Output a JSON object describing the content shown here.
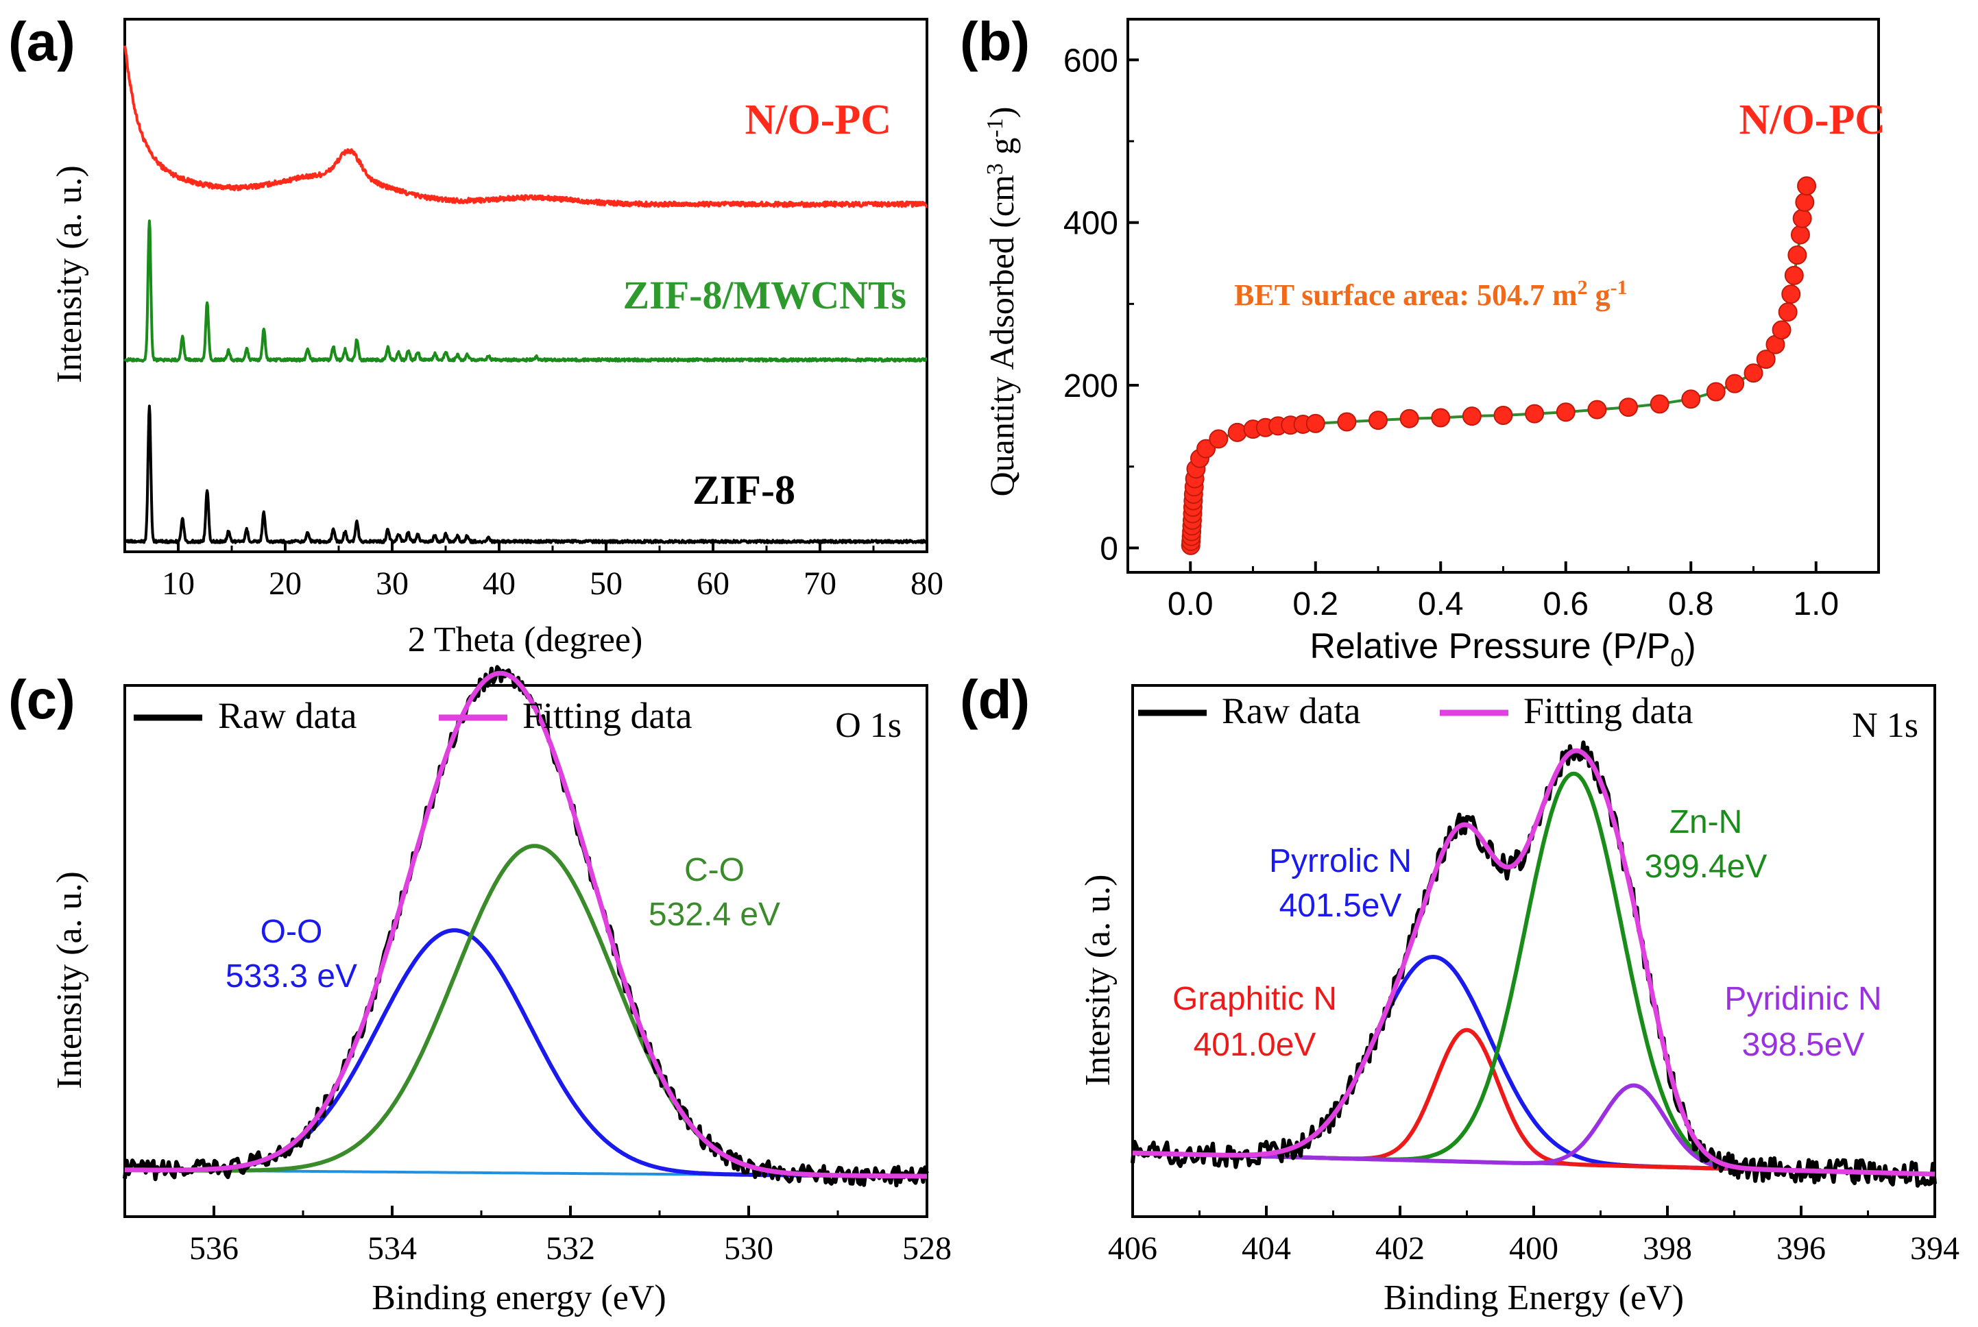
{
  "figure": {
    "panels": [
      "(a)",
      "(b)",
      "(c)",
      "(d)"
    ]
  },
  "chart_data": [
    {
      "id": "a",
      "type": "line",
      "panel_label": "(a)",
      "xlabel": "2 Theta (degree)",
      "ylabel": "Intensity (a. u.)",
      "xlim": [
        5,
        80
      ],
      "xticks": [
        10,
        20,
        30,
        40,
        50,
        60,
        70,
        80
      ],
      "yticks_shown": false,
      "ylim": [
        0,
        100
      ],
      "series": [
        {
          "name": "N/O-PC",
          "color": "#ff2a1a",
          "label_color": "#ff2a1a",
          "description": "broad amorphous carbon hump",
          "baseline": 65,
          "features": [
            {
              "type": "decay",
              "start": 5,
              "amp": 21,
              "tau": 1.2
            },
            {
              "type": "decay",
              "start": 5,
              "amp": 10,
              "tau": 7
            },
            {
              "type": "hump",
              "center": 24.5,
              "amp": 5,
              "width": 5
            },
            {
              "type": "peak",
              "center": 26,
              "amp": 5,
              "width": 1.0
            },
            {
              "type": "hump",
              "center": 43,
              "amp": 1.2,
              "width": 4
            }
          ]
        },
        {
          "name": "ZIF-8/MWCNTs",
          "color": "#1a8c1a",
          "label_color": "#2e9a2e",
          "baseline": 35,
          "peaks": [
            [
              7.3,
              27
            ],
            [
              10.4,
              4.5
            ],
            [
              12.7,
              11
            ],
            [
              14.7,
              1.8
            ],
            [
              16.4,
              2.2
            ],
            [
              18.0,
              6
            ],
            [
              22.1,
              2
            ],
            [
              24.5,
              2.5
            ],
            [
              25.6,
              2
            ],
            [
              26.7,
              4
            ],
            [
              29.6,
              2.4
            ],
            [
              30.6,
              1.5
            ],
            [
              31.5,
              1.8
            ],
            [
              32.4,
              1.6
            ],
            [
              34.0,
              1.2
            ],
            [
              35.0,
              1.5
            ],
            [
              36.1,
              1
            ],
            [
              37.0,
              1
            ],
            [
              39.0,
              0.8
            ],
            [
              43.5,
              0.6
            ]
          ]
        },
        {
          "name": "ZIF-8",
          "color": "#000000",
          "label_color": "#000000",
          "baseline": 0,
          "peaks": [
            [
              7.3,
              26
            ],
            [
              10.4,
              4.3
            ],
            [
              12.7,
              10
            ],
            [
              14.7,
              2
            ],
            [
              16.4,
              2.3
            ],
            [
              18.0,
              5.5
            ],
            [
              22.1,
              1.8
            ],
            [
              24.5,
              2.3
            ],
            [
              25.6,
              1.9
            ],
            [
              26.7,
              3.8
            ],
            [
              29.6,
              2.3
            ],
            [
              30.6,
              1.5
            ],
            [
              31.5,
              1.7
            ],
            [
              32.4,
              1.5
            ],
            [
              34.0,
              1.2
            ],
            [
              35.0,
              1.4
            ],
            [
              36.1,
              1
            ],
            [
              37.0,
              1
            ],
            [
              39.0,
              0.8
            ]
          ]
        }
      ]
    },
    {
      "id": "b",
      "type": "scatter",
      "panel_label": "(b)",
      "xlabel": "Relative Pressure (P/P",
      "xlabel_sub": "0",
      "xlabel_end": ")",
      "ylabel": "Quantity Adsorbed (cm",
      "ylabel_sup": "3",
      "ylabel_mid": " g",
      "ylabel_sup2": "-1",
      "ylabel_end": ")",
      "xlim": [
        -0.1,
        1.1
      ],
      "ylim": [
        -30,
        650
      ],
      "xticks": [
        0.0,
        0.2,
        0.4,
        0.6,
        0.8,
        1.0
      ],
      "xtick_labels": [
        "0.0",
        "0.2",
        "0.4",
        "0.6",
        "0.8",
        "1.0"
      ],
      "yticks": [
        0,
        200,
        400,
        600
      ],
      "sample_label": "N/O-PC",
      "annotation_prefix": "BET surface area: 504.7 m",
      "annotation_sup": "2",
      "annotation_mid": " g",
      "annotation_sup2": "-1",
      "marker_color": "#ff2a1a",
      "line_color": "#2e8b2e",
      "series": [
        {
          "name": "N2 adsorption",
          "x": [
            0.0005,
            0.001,
            0.0015,
            0.002,
            0.0025,
            0.003,
            0.0035,
            0.004,
            0.0045,
            0.005,
            0.006,
            0.007,
            0.009,
            0.015,
            0.025,
            0.045,
            0.075,
            0.1,
            0.12,
            0.14,
            0.16,
            0.18,
            0.2,
            0.25,
            0.3,
            0.35,
            0.4,
            0.45,
            0.5,
            0.55,
            0.6,
            0.65,
            0.7,
            0.75,
            0.8,
            0.84,
            0.87,
            0.9,
            0.92,
            0.935,
            0.945,
            0.955,
            0.96,
            0.965,
            0.97,
            0.975,
            0.978,
            0.982,
            0.985
          ],
          "y": [
            3,
            8,
            14,
            20,
            27,
            34,
            42,
            50,
            58,
            66,
            75,
            85,
            97,
            110,
            122,
            134,
            142,
            146,
            148,
            150,
            151,
            152,
            153,
            155,
            157,
            159,
            160,
            162,
            163,
            165,
            167,
            170,
            173,
            177,
            183,
            192,
            202,
            215,
            232,
            250,
            268,
            290,
            312,
            335,
            360,
            385,
            405,
            425,
            445
          ]
        }
      ]
    },
    {
      "id": "c",
      "type": "line",
      "panel_label": "(c)",
      "xlabel": "Binding energy (eV)",
      "ylabel": "Intensity (a. u.)",
      "xlim": [
        537,
        528
      ],
      "xticks": [
        536,
        534,
        532,
        530,
        528
      ],
      "yticks_shown": false,
      "ylim": [
        -10,
        115
      ],
      "legend": [
        "Raw data",
        "Fitting data"
      ],
      "legend_position": "top-left",
      "core_level": "O 1s",
      "series": [
        {
          "name": "Raw data",
          "color": "#000000",
          "kind": "noisy-sum"
        },
        {
          "name": "Fitting data",
          "color": "#e040e0",
          "kind": "sum"
        },
        {
          "name": "O-O",
          "color": "#1a1aee",
          "center": 533.3,
          "height": 57,
          "fwhm": 2.0,
          "label": "O-O",
          "sublabel": "533.3 eV"
        },
        {
          "name": "C-O",
          "color": "#3a8c2a",
          "center": 532.4,
          "height": 77,
          "fwhm": 2.1,
          "label": "C-O",
          "sublabel": "532.4 eV"
        },
        {
          "name": "Background",
          "color": "#2090e0",
          "kind": "baseline",
          "y_start": 1.0,
          "y_end": -0.5
        }
      ]
    },
    {
      "id": "d",
      "type": "line",
      "panel_label": "(d)",
      "xlabel": "Binding Energy (eV)",
      "ylabel": "Intersity (a. u.)",
      "xlim": [
        406,
        394
      ],
      "xticks": [
        406,
        404,
        402,
        400,
        398,
        396,
        394
      ],
      "yticks_shown": false,
      "ylim": [
        -10,
        115
      ],
      "legend": [
        "Raw data",
        "Fitting data"
      ],
      "legend_position": "top-left",
      "core_level": "N 1s",
      "series": [
        {
          "name": "Raw data",
          "color": "#000000",
          "kind": "noisy-sum"
        },
        {
          "name": "Fitting data",
          "color": "#e040e0",
          "kind": "sum"
        },
        {
          "name": "Pyrrolic N",
          "color": "#1a1aee",
          "center": 401.5,
          "height": 48,
          "fwhm": 2.0,
          "label": "Pyrrolic N",
          "sublabel": "401.5eV"
        },
        {
          "name": "Graphitic N",
          "color": "#ee1a1a",
          "center": 401.0,
          "height": 31,
          "fwhm": 1.1,
          "label": "Graphitic N",
          "sublabel": "401.0eV"
        },
        {
          "name": "Zn-N",
          "color": "#1a8c1a",
          "center": 399.4,
          "height": 92,
          "fwhm": 1.7,
          "label": "Zn-N",
          "sublabel": "399.4eV"
        },
        {
          "name": "Pyridinic N",
          "color": "#9b30e0",
          "center": 398.5,
          "height": 19,
          "fwhm": 1.1,
          "label": "Pyridinic N",
          "sublabel": "398.5eV"
        },
        {
          "name": "Background",
          "color": "#9b30e0",
          "kind": "baseline",
          "y_start": 5.0,
          "y_end": 0
        }
      ]
    }
  ]
}
